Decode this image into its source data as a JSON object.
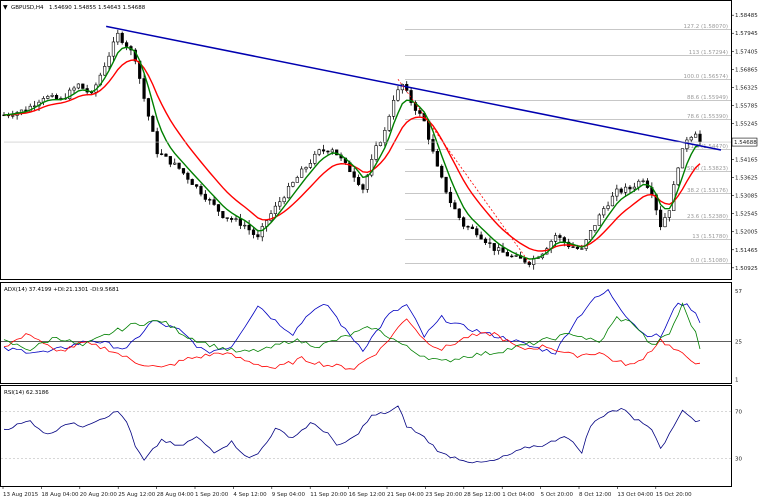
{
  "chart_data": {
    "type": "candlestick",
    "header": {
      "symbol_tf": "GBPUSD,H4",
      "ohlc": "1.54690 1.54855 1.54643 1.54688"
    },
    "price_axis": {
      "ticks": [
        "1.58485",
        "1.57945",
        "1.57405",
        "1.56865",
        "1.56325",
        "1.55785",
        "1.55245",
        "1.54165",
        "1.53625",
        "1.53085",
        "1.52545",
        "1.52005",
        "1.51465",
        "1.50925"
      ],
      "current_price": "1.54688",
      "range": [
        1.5065,
        1.5885
      ]
    },
    "time_axis": {
      "ticks": [
        "13 Aug 2015",
        "18 Aug 04:00",
        "20 Aug 20:00",
        "25 Aug 12:00",
        "28 Aug 04:00",
        "1 Sep 20:00",
        "4 Sep 12:00",
        "9 Sep 04:00",
        "11 Sep 20:00",
        "16 Sep 12:00",
        "21 Sep 04:00",
        "23 Sep 20:00",
        "28 Sep 12:00",
        "1 Oct 04:00",
        "5 Oct 20:00",
        "8 Oct 12:00",
        "13 Oct 04:00",
        "15 Oct 20:00"
      ]
    },
    "fibonacci": [
      {
        "level": "127.2",
        "price": "1.58070",
        "value": 1.5807
      },
      {
        "level": "113",
        "price": "1.57294",
        "value": 1.57294
      },
      {
        "level": "100.0",
        "price": "1.56574",
        "value": 1.56574
      },
      {
        "level": "88.6",
        "price": "1.55949",
        "value": 1.55949
      },
      {
        "level": "78.6",
        "price": "1.55390",
        "value": 1.5539
      },
      {
        "level": "61.8",
        "price": "1.54470",
        "value": 1.5447
      },
      {
        "level": "50.0",
        "price": "1.53823",
        "value": 1.53823
      },
      {
        "level": "38.2",
        "price": "1.53176",
        "value": 1.53176
      },
      {
        "level": "23.6",
        "price": "1.52380",
        "value": 1.5238
      },
      {
        "level": "13",
        "price": "1.51780",
        "value": 1.5178
      },
      {
        "level": "0.0",
        "price": "1.51080",
        "value": 1.5108
      }
    ],
    "trendline": {
      "from": [
        0.1405,
        1.5815
      ],
      "to": [
        1.0,
        1.5445
      ]
    },
    "price_series": {
      "bars": 160,
      "close_keypoints": [
        [
          0,
          1.555
        ],
        [
          5,
          1.5565
        ],
        [
          9,
          1.5605
        ],
        [
          13,
          1.5595
        ],
        [
          17,
          1.564
        ],
        [
          20,
          1.561
        ],
        [
          23,
          1.57
        ],
        [
          26,
          1.579
        ],
        [
          28,
          1.576
        ],
        [
          30,
          1.572
        ],
        [
          32,
          1.56
        ],
        [
          35,
          1.544
        ],
        [
          40,
          1.539
        ],
        [
          45,
          1.532
        ],
        [
          50,
          1.525
        ],
        [
          55,
          1.522
        ],
        [
          58,
          1.518
        ],
        [
          60,
          1.5235
        ],
        [
          64,
          1.531
        ],
        [
          68,
          1.538
        ],
        [
          72,
          1.544
        ],
        [
          75,
          1.545
        ],
        [
          78,
          1.54
        ],
        [
          80,
          1.537
        ],
        [
          82,
          1.533
        ],
        [
          85,
          1.545
        ],
        [
          87,
          1.55
        ],
        [
          89,
          1.56
        ],
        [
          91,
          1.564
        ],
        [
          93,
          1.559
        ],
        [
          96,
          1.553
        ],
        [
          99,
          1.539
        ],
        [
          102,
          1.529
        ],
        [
          105,
          1.522
        ],
        [
          108,
          1.52
        ],
        [
          112,
          1.515
        ],
        [
          116,
          1.5125
        ],
        [
          120,
          1.511
        ],
        [
          123,
          1.514
        ],
        [
          126,
          1.519
        ],
        [
          129,
          1.516
        ],
        [
          132,
          1.5145
        ],
        [
          134,
          1.52
        ],
        [
          137,
          1.527
        ],
        [
          140,
          1.532
        ],
        [
          143,
          1.533
        ],
        [
          146,
          1.536
        ],
        [
          148,
          1.532
        ],
        [
          150,
          1.522
        ],
        [
          152,
          1.527
        ],
        [
          154,
          1.54
        ],
        [
          156,
          1.548
        ],
        [
          158,
          1.55
        ],
        [
          159,
          1.5469
        ]
      ],
      "ema_fast": {
        "color": "#008000",
        "period_bars": 5
      },
      "ema_slow": {
        "color": "#ff0000",
        "period_bars": 12
      }
    },
    "adx_pane": {
      "title": "ADX(14) 37.4199 +DI:21.1301 -DI:9.5681",
      "ticks": [
        "57",
        "25",
        "1"
      ],
      "level": 25,
      "range": [
        0,
        60
      ],
      "series": [
        {
          "color": "#0000c0",
          "keypoints": [
            [
              0,
              20
            ],
            [
              10,
              18
            ],
            [
              20,
              26
            ],
            [
              28,
              20
            ],
            [
              34,
              38
            ],
            [
              40,
              32
            ],
            [
              46,
              18
            ],
            [
              52,
              22
            ],
            [
              58,
              48
            ],
            [
              62,
              38
            ],
            [
              66,
              30
            ],
            [
              70,
              44
            ],
            [
              74,
              48
            ],
            [
              78,
              32
            ],
            [
              82,
              20
            ],
            [
              88,
              42
            ],
            [
              92,
              48
            ],
            [
              96,
              28
            ],
            [
              100,
              40
            ],
            [
              104,
              35
            ],
            [
              110,
              30
            ],
            [
              116,
              26
            ],
            [
              120,
              22
            ],
            [
              126,
              18
            ],
            [
              130,
              36
            ],
            [
              134,
              50
            ],
            [
              138,
              57
            ],
            [
              142,
              42
            ],
            [
              146,
              30
            ],
            [
              150,
              28
            ],
            [
              154,
              50
            ],
            [
              157,
              46
            ],
            [
              159,
              38
            ]
          ]
        },
        {
          "color": "#ff0000",
          "keypoints": [
            [
              0,
              22
            ],
            [
              6,
              30
            ],
            [
              12,
              18
            ],
            [
              18,
              24
            ],
            [
              24,
              20
            ],
            [
              30,
              12
            ],
            [
              36,
              8
            ],
            [
              42,
              14
            ],
            [
              50,
              18
            ],
            [
              56,
              12
            ],
            [
              62,
              8
            ],
            [
              68,
              14
            ],
            [
              74,
              10
            ],
            [
              80,
              8
            ],
            [
              86,
              20
            ],
            [
              92,
              40
            ],
            [
              96,
              26
            ],
            [
              100,
              20
            ],
            [
              106,
              28
            ],
            [
              112,
              30
            ],
            [
              118,
              20
            ],
            [
              124,
              22
            ],
            [
              130,
              16
            ],
            [
              136,
              18
            ],
            [
              140,
              12
            ],
            [
              144,
              10
            ],
            [
              148,
              20
            ],
            [
              150,
              26
            ],
            [
              154,
              18
            ],
            [
              157,
              14
            ],
            [
              159,
              10
            ]
          ]
        },
        {
          "color": "#008000",
          "keypoints": [
            [
              0,
              25
            ],
            [
              6,
              20
            ],
            [
              12,
              28
            ],
            [
              18,
              22
            ],
            [
              24,
              30
            ],
            [
              30,
              36
            ],
            [
              36,
              38
            ],
            [
              42,
              28
            ],
            [
              48,
              22
            ],
            [
              54,
              18
            ],
            [
              60,
              20
            ],
            [
              66,
              26
            ],
            [
              72,
              22
            ],
            [
              78,
              28
            ],
            [
              84,
              34
            ],
            [
              88,
              28
            ],
            [
              94,
              18
            ],
            [
              100,
              12
            ],
            [
              106,
              16
            ],
            [
              112,
              18
            ],
            [
              118,
              22
            ],
            [
              124,
              26
            ],
            [
              130,
              30
            ],
            [
              136,
              24
            ],
            [
              140,
              40
            ],
            [
              144,
              36
            ],
            [
              148,
              22
            ],
            [
              152,
              30
            ],
            [
              155,
              48
            ],
            [
              158,
              30
            ],
            [
              159,
              21
            ]
          ]
        }
      ]
    },
    "rsi_pane": {
      "title": "RSI(14) 62.3186",
      "ticks": [
        "70",
        "30"
      ],
      "levels": [
        70,
        30
      ],
      "range": [
        10,
        85
      ],
      "series": [
        {
          "color": "#000080",
          "keypoints": [
            [
              0,
              55
            ],
            [
              6,
              62
            ],
            [
              10,
              50
            ],
            [
              14,
              60
            ],
            [
              18,
              58
            ],
            [
              22,
              64
            ],
            [
              26,
              70
            ],
            [
              28,
              62
            ],
            [
              30,
              40
            ],
            [
              32,
              28
            ],
            [
              36,
              46
            ],
            [
              40,
              40
            ],
            [
              44,
              48
            ],
            [
              48,
              36
            ],
            [
              52,
              44
            ],
            [
              56,
              30
            ],
            [
              58,
              34
            ],
            [
              62,
              55
            ],
            [
              66,
              48
            ],
            [
              70,
              60
            ],
            [
              74,
              52
            ],
            [
              76,
              40
            ],
            [
              80,
              48
            ],
            [
              84,
              66
            ],
            [
              88,
              70
            ],
            [
              90,
              74
            ],
            [
              92,
              58
            ],
            [
              96,
              48
            ],
            [
              100,
              34
            ],
            [
              104,
              30
            ],
            [
              108,
              26
            ],
            [
              112,
              28
            ],
            [
              116,
              34
            ],
            [
              120,
              40
            ],
            [
              124,
              42
            ],
            [
              128,
              50
            ],
            [
              132,
              36
            ],
            [
              134,
              58
            ],
            [
              138,
              70
            ],
            [
              142,
              72
            ],
            [
              144,
              64
            ],
            [
              148,
              56
            ],
            [
              150,
              40
            ],
            [
              152,
              50
            ],
            [
              155,
              72
            ],
            [
              158,
              62
            ],
            [
              159,
              62
            ]
          ]
        }
      ]
    }
  }
}
